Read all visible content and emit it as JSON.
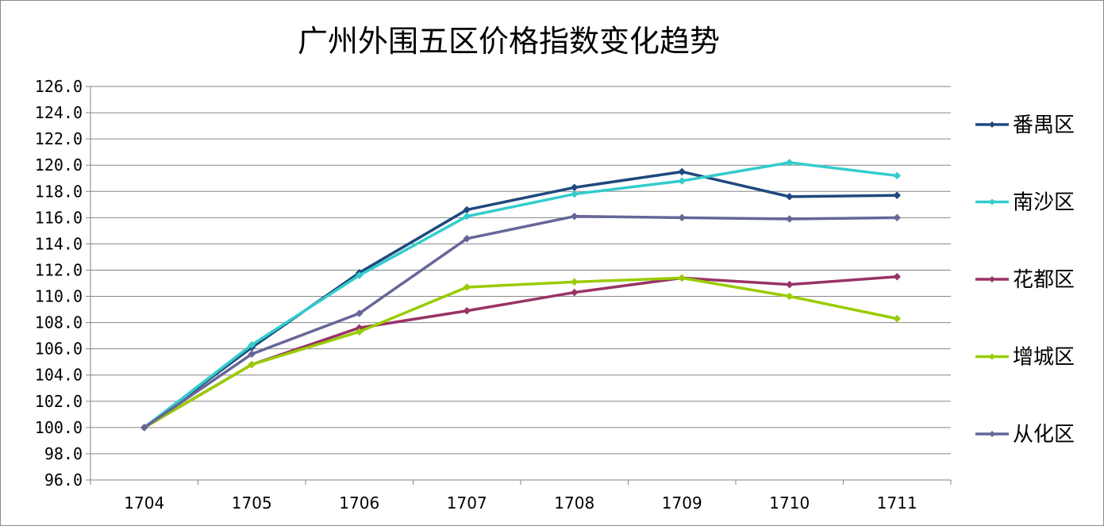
{
  "chart_data": {
    "type": "line",
    "title": "广州外围五区价格指数变化趋势",
    "x": [
      "1704",
      "1705",
      "1706",
      "1707",
      "1708",
      "1709",
      "1710",
      "1711"
    ],
    "ylim": [
      96.0,
      126.0
    ],
    "y_ticks": [
      "96.0",
      "98.0",
      "100.0",
      "102.0",
      "104.0",
      "106.0",
      "108.0",
      "110.0",
      "112.0",
      "114.0",
      "116.0",
      "118.0",
      "120.0",
      "122.0",
      "124.0",
      "126.0"
    ],
    "grid": true,
    "legend_position": "right",
    "series": [
      {
        "name": "番禺区",
        "color": "#1F497D",
        "values": [
          100.0,
          106.1,
          111.8,
          116.6,
          118.3,
          119.5,
          117.6,
          117.7
        ]
      },
      {
        "name": "南沙区",
        "color": "#33CCCC",
        "values": [
          100.0,
          106.3,
          111.6,
          116.1,
          117.8,
          118.8,
          120.2,
          119.2
        ]
      },
      {
        "name": "花都区",
        "color": "#993366",
        "values": [
          100.0,
          104.8,
          107.6,
          108.9,
          110.3,
          111.4,
          110.9,
          111.5
        ]
      },
      {
        "name": "增城区",
        "color": "#99CC00",
        "values": [
          100.0,
          104.8,
          107.3,
          110.7,
          111.1,
          111.4,
          110.0,
          108.3
        ]
      },
      {
        "name": "从化区",
        "color": "#666699",
        "values": [
          100.0,
          105.6,
          108.7,
          114.4,
          116.1,
          116.0,
          115.9,
          116.0
        ]
      }
    ]
  }
}
